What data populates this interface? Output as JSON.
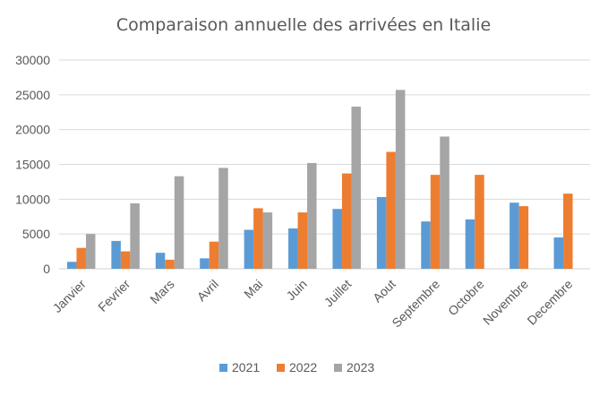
{
  "chart_data": {
    "type": "bar",
    "title": "Comparaison annuelle des arrivées en Italie",
    "xlabel": "",
    "ylabel": "",
    "categories": [
      "Janvier",
      "Fevrier",
      "Mars",
      "Avril",
      "Mai",
      "Juin",
      "Juillet",
      "Aout",
      "Septembre",
      "Octobre",
      "Novembre",
      "Decembre"
    ],
    "series": [
      {
        "name": "2021",
        "color": "#5b9bd5",
        "values": [
          1000,
          4000,
          2300,
          1500,
          5600,
          5800,
          8600,
          10300,
          6800,
          7100,
          9500,
          4500
        ]
      },
      {
        "name": "2022",
        "color": "#ed7d31",
        "values": [
          3000,
          2500,
          1300,
          3900,
          8700,
          8100,
          13700,
          16800,
          13500,
          13500,
          9000,
          10800
        ]
      },
      {
        "name": "2023",
        "color": "#a5a5a5",
        "values": [
          5000,
          9400,
          13300,
          14500,
          8100,
          15200,
          23300,
          25700,
          19000,
          0,
          0,
          0
        ]
      }
    ],
    "ylim": [
      0,
      30000
    ],
    "yticks": [
      "0",
      "5000",
      "10000",
      "15000",
      "20000",
      "25000",
      "30000"
    ],
    "grid": true,
    "legend": "bottom"
  }
}
